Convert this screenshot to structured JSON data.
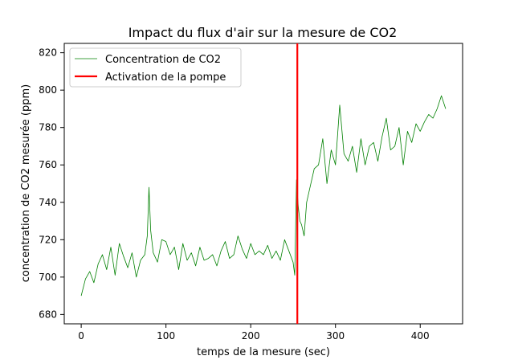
{
  "chart_data": {
    "type": "line",
    "title": "Impact du flux d'air sur la mesure de CO2",
    "xlabel": "temps de la mesure (sec)",
    "ylabel": "concentration de CO2 mesurée (ppm)",
    "xlim": [
      -20,
      450
    ],
    "ylim": [
      675,
      825
    ],
    "xticks": [
      0,
      100,
      200,
      300,
      400
    ],
    "yticks": [
      680,
      700,
      720,
      740,
      760,
      780,
      800,
      820
    ],
    "grid": false,
    "legend_position": "top-left",
    "series": [
      {
        "name": "Concentration de CO2",
        "color": "#008000",
        "x": [
          0,
          5,
          10,
          15,
          20,
          25,
          30,
          35,
          40,
          45,
          50,
          55,
          60,
          65,
          70,
          75,
          78,
          80,
          82,
          85,
          90,
          95,
          100,
          105,
          110,
          115,
          120,
          125,
          130,
          135,
          140,
          145,
          150,
          155,
          160,
          165,
          170,
          175,
          180,
          185,
          190,
          195,
          200,
          205,
          210,
          215,
          220,
          225,
          230,
          235,
          240,
          245,
          250,
          252,
          254,
          256,
          258,
          260,
          263,
          266,
          270,
          275,
          280,
          285,
          290,
          295,
          300,
          305,
          310,
          315,
          320,
          325,
          330,
          335,
          340,
          345,
          350,
          355,
          360,
          365,
          370,
          375,
          380,
          385,
          390,
          395,
          400,
          405,
          410,
          415,
          420,
          425,
          430
        ],
        "y": [
          690,
          699,
          703,
          697,
          707,
          712,
          704,
          716,
          701,
          718,
          711,
          705,
          713,
          700,
          709,
          712,
          722,
          748,
          725,
          713,
          708,
          720,
          719,
          712,
          716,
          704,
          718,
          709,
          713,
          706,
          716,
          709,
          710,
          712,
          706,
          714,
          719,
          710,
          712,
          722,
          715,
          710,
          718,
          712,
          714,
          712,
          717,
          710,
          714,
          709,
          720,
          714,
          708,
          701,
          752,
          738,
          730,
          728,
          722,
          740,
          748,
          758,
          760,
          774,
          750,
          768,
          760,
          792,
          766,
          762,
          770,
          756,
          774,
          760,
          770,
          772,
          762,
          775,
          785,
          768,
          770,
          780,
          760,
          778,
          772,
          782,
          778,
          783,
          787,
          785,
          790,
          797,
          790
        ]
      },
      {
        "name": "Activation de la pompe",
        "color": "#ff0000",
        "x": [
          255,
          255
        ],
        "y": [
          675,
          825
        ]
      }
    ]
  }
}
